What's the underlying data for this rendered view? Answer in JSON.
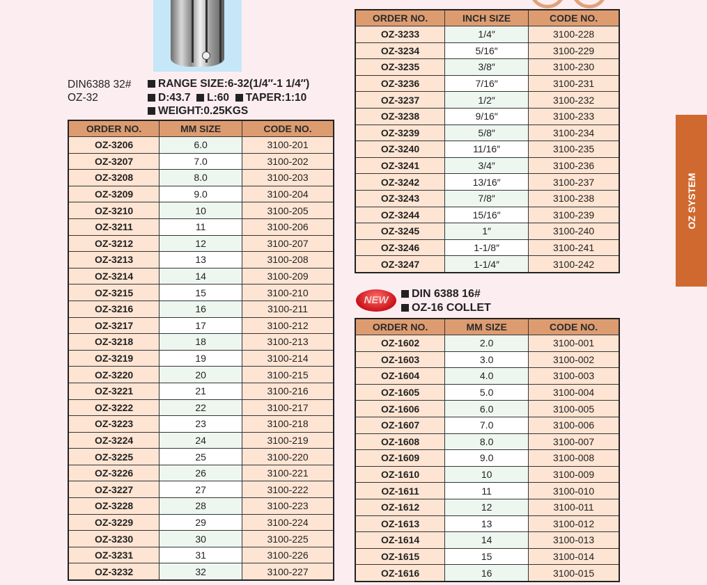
{
  "side_tab": "OZ SYSTEM",
  "oz32": {
    "din": "DIN6388 32#",
    "model": "OZ-32",
    "specs": [
      "RANGE SIZE:6-32(1/4″-1 1/4″)",
      "D:43.7",
      "L:60",
      "TAPER:1:10",
      "WEIGHT:0.25KGS"
    ],
    "headers": [
      "ORDER NO.",
      "MM SIZE",
      "CODE NO."
    ],
    "rows": [
      [
        "OZ-3206",
        "6.0",
        "3100-201"
      ],
      [
        "OZ-3207",
        "7.0",
        "3100-202"
      ],
      [
        "OZ-3208",
        "8.0",
        "3100-203"
      ],
      [
        "OZ-3209",
        "9.0",
        "3100-204"
      ],
      [
        "OZ-3210",
        "10",
        "3100-205"
      ],
      [
        "OZ-3211",
        "11",
        "3100-206"
      ],
      [
        "OZ-3212",
        "12",
        "3100-207"
      ],
      [
        "OZ-3213",
        "13",
        "3100-208"
      ],
      [
        "OZ-3214",
        "14",
        "3100-209"
      ],
      [
        "OZ-3215",
        "15",
        "3100-210"
      ],
      [
        "OZ-3216",
        "16",
        "3100-211"
      ],
      [
        "OZ-3217",
        "17",
        "3100-212"
      ],
      [
        "OZ-3218",
        "18",
        "3100-213"
      ],
      [
        "OZ-3219",
        "19",
        "3100-214"
      ],
      [
        "OZ-3220",
        "20",
        "3100-215"
      ],
      [
        "OZ-3221",
        "21",
        "3100-216"
      ],
      [
        "OZ-3222",
        "22",
        "3100-217"
      ],
      [
        "OZ-3223",
        "23",
        "3100-218"
      ],
      [
        "OZ-3224",
        "24",
        "3100-219"
      ],
      [
        "OZ-3225",
        "25",
        "3100-220"
      ],
      [
        "OZ-3226",
        "26",
        "3100-221"
      ],
      [
        "OZ-3227",
        "27",
        "3100-222"
      ],
      [
        "OZ-3228",
        "28",
        "3100-223"
      ],
      [
        "OZ-3229",
        "29",
        "3100-224"
      ],
      [
        "OZ-3230",
        "30",
        "3100-225"
      ],
      [
        "OZ-3231",
        "31",
        "3100-226"
      ],
      [
        "OZ-3232",
        "32",
        "3100-227"
      ]
    ]
  },
  "inch": {
    "headers": [
      "ORDER NO.",
      "INCH SIZE",
      "CODE NO."
    ],
    "rows": [
      [
        "OZ-3233",
        "1/4″",
        "3100-228"
      ],
      [
        "OZ-3234",
        "5/16″",
        "3100-229"
      ],
      [
        "OZ-3235",
        "3/8″",
        "3100-230"
      ],
      [
        "OZ-3236",
        "7/16″",
        "3100-231"
      ],
      [
        "OZ-3237",
        "1/2″",
        "3100-232"
      ],
      [
        "OZ-3238",
        "9/16″",
        "3100-233"
      ],
      [
        "OZ-3239",
        "5/8″",
        "3100-234"
      ],
      [
        "OZ-3240",
        "11/16″",
        "3100-235"
      ],
      [
        "OZ-3241",
        "3/4″",
        "3100-236"
      ],
      [
        "OZ-3242",
        "13/16″",
        "3100-237"
      ],
      [
        "OZ-3243",
        "7/8″",
        "3100-238"
      ],
      [
        "OZ-3244",
        "15/16″",
        "3100-239"
      ],
      [
        "OZ-3245",
        "1″",
        "3100-240"
      ],
      [
        "OZ-3246",
        "1-1/8″",
        "3100-241"
      ],
      [
        "OZ-3247",
        "1-1/4″",
        "3100-242"
      ]
    ]
  },
  "oz16": {
    "badge": "NEW",
    "specs": [
      "DIN 6388 16#",
      "OZ-16 COLLET"
    ],
    "headers": [
      "ORDER NO.",
      "MM SIZE",
      "CODE NO."
    ],
    "rows": [
      [
        "OZ-1602",
        "2.0",
        "3100-001"
      ],
      [
        "OZ-1603",
        "3.0",
        "3100-002"
      ],
      [
        "OZ-1604",
        "4.0",
        "3100-003"
      ],
      [
        "OZ-1605",
        "5.0",
        "3100-004"
      ],
      [
        "OZ-1606",
        "6.0",
        "3100-005"
      ],
      [
        "OZ-1607",
        "7.0",
        "3100-006"
      ],
      [
        "OZ-1608",
        "8.0",
        "3100-007"
      ],
      [
        "OZ-1609",
        "9.0",
        "3100-008"
      ],
      [
        "OZ-1610",
        "10",
        "3100-009"
      ],
      [
        "OZ-1611",
        "11",
        "3100-010"
      ],
      [
        "OZ-1612",
        "12",
        "3100-011"
      ],
      [
        "OZ-1613",
        "13",
        "3100-012"
      ],
      [
        "OZ-1614",
        "14",
        "3100-013"
      ],
      [
        "OZ-1615",
        "15",
        "3100-014"
      ],
      [
        "OZ-1616",
        "16",
        "3100-015"
      ]
    ]
  }
}
